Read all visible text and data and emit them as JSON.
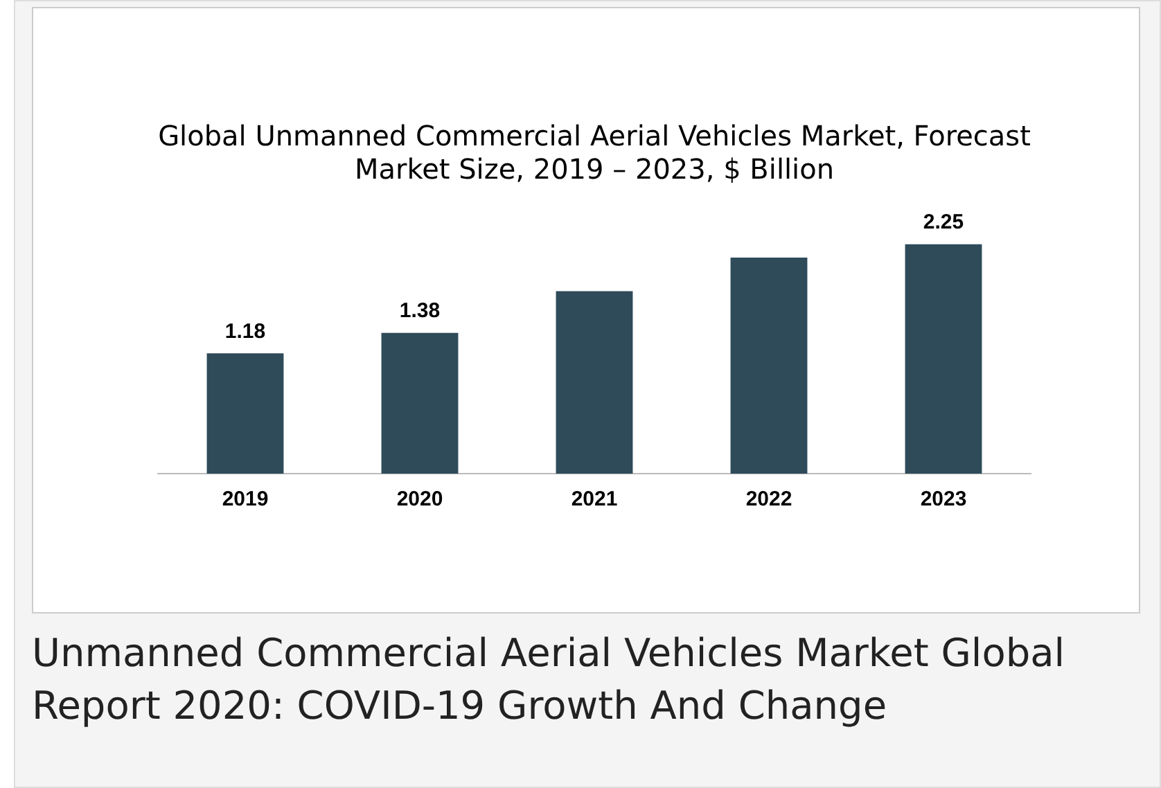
{
  "chart_data": {
    "type": "bar",
    "title": "Global Unmanned Commercial Aerial Vehicles Market, Forecast\nMarket Size, 2019 – 2023, $ Billion",
    "categories": [
      "2019",
      "2020",
      "2021",
      "2022",
      "2023"
    ],
    "values": [
      1.18,
      1.38,
      1.79,
      2.12,
      2.25
    ],
    "value_labels": [
      "1.18",
      "1.38",
      null,
      null,
      "2.25"
    ],
    "color": "#2f4b5a",
    "grid": false,
    "legend": false,
    "annotations": [
      "Unmanned Commercial Aerial Vehicles Market Global Report 2020: COVID-19 Growth And Change"
    ]
  }
}
